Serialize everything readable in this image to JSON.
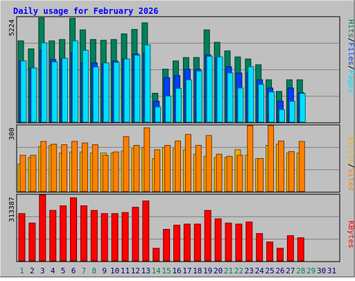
{
  "title": "Daily usage for February 2026",
  "colors": {
    "background": "#c0c0c0",
    "title": "#0000ff",
    "hits": "#00805c",
    "files": "#0040ff",
    "pages": "#00e0ff",
    "visits": "#f0b000",
    "sites": "#ff8000",
    "kbytes": "#ff0000",
    "weekday_label": "#000080",
    "weekend_label": "#00805c"
  },
  "chart_data": [
    {
      "type": "bar",
      "panel": "top",
      "ymax_label": "5224",
      "ylim": [
        0,
        5224
      ],
      "legend": [
        "Pages",
        "Files",
        "Hits"
      ],
      "legend_separator": "/",
      "x": [
        1,
        2,
        3,
        4,
        5,
        6,
        7,
        8,
        9,
        10,
        11,
        12,
        13,
        14,
        15,
        16,
        17,
        18,
        19,
        20,
        21,
        22,
        23,
        24,
        25,
        26,
        27,
        28
      ],
      "series": [
        {
          "name": "Hits",
          "values": [
            4050,
            3650,
            5200,
            4050,
            4120,
            5180,
            4600,
            4120,
            4080,
            4120,
            4400,
            4620,
            4950,
            1440,
            2640,
            3050,
            3220,
            3220,
            4600,
            3980,
            3550,
            3250,
            3150,
            2860,
            2110,
            1530,
            2110,
            2110
          ]
        },
        {
          "name": "Files",
          "values": [
            3050,
            2700,
            3600,
            3120,
            3180,
            3480,
            2960,
            2950,
            2900,
            3050,
            3150,
            3400,
            3450,
            1040,
            2220,
            2320,
            2640,
            2640,
            3350,
            3200,
            2760,
            2450,
            2450,
            2110,
            1700,
            1040,
            1700,
            1470
          ]
        },
        {
          "name": "Pages",
          "values": [
            3050,
            2700,
            3950,
            3000,
            3180,
            4050,
            3580,
            2750,
            2950,
            2980,
            3150,
            3340,
            3850,
            760,
            1300,
            1680,
            2110,
            2550,
            3280,
            3250,
            2450,
            1700,
            2760,
            1880,
            1500,
            620,
            1040,
            1430
          ]
        }
      ]
    },
    {
      "type": "bar",
      "panel": "middle",
      "ymax_label": "300",
      "ylim": [
        0,
        300
      ],
      "legend": [
        "Sites",
        "Visits"
      ],
      "legend_separator": "/",
      "x": [
        1,
        2,
        3,
        4,
        5,
        6,
        7,
        8,
        9,
        10,
        11,
        12,
        13,
        14,
        15,
        16,
        17,
        18,
        19,
        20,
        21,
        22,
        23,
        24,
        25,
        26,
        27,
        28
      ],
      "series": [
        {
          "name": "Visits",
          "values": [
            125,
            155,
            205,
            210,
            175,
            180,
            180,
            175,
            175,
            175,
            185,
            195,
            200,
            150,
            200,
            195,
            190,
            170,
            160,
            155,
            155,
            190,
            165,
            150,
            210,
            215,
            175,
            175
          ]
        },
        {
          "name": "Sites",
          "values": [
            165,
            165,
            228,
            215,
            213,
            228,
            221,
            213,
            165,
            180,
            250,
            210,
            290,
            190,
            210,
            230,
            260,
            210,
            255,
            170,
            160,
            165,
            307,
            150,
            310,
            230,
            182,
            228
          ]
        }
      ]
    },
    {
      "type": "bar",
      "panel": "bottom",
      "ymax_label": "313387",
      "ylim": [
        0,
        313387
      ],
      "legend": [
        "KBytes"
      ],
      "x": [
        1,
        2,
        3,
        4,
        5,
        6,
        7,
        8,
        9,
        10,
        11,
        12,
        13,
        14,
        15,
        16,
        17,
        18,
        19,
        20,
        21,
        22,
        23,
        24,
        25,
        26,
        27,
        28
      ],
      "series": [
        {
          "name": "KBytes",
          "values": [
            225000,
            180000,
            316000,
            240000,
            262000,
            300000,
            262000,
            240000,
            225000,
            225000,
            230000,
            255000,
            285000,
            60000,
            150000,
            170000,
            175000,
            175000,
            240000,
            200000,
            180000,
            175000,
            185000,
            130000,
            90000,
            60000,
            120000,
            110000
          ]
        }
      ]
    }
  ],
  "x_axis": {
    "days": [
      "1",
      "2",
      "3",
      "4",
      "5",
      "6",
      "7",
      "8",
      "9",
      "10",
      "11",
      "12",
      "13",
      "14",
      "15",
      "16",
      "17",
      "18",
      "19",
      "20",
      "21",
      "22",
      "23",
      "24",
      "25",
      "26",
      "27",
      "28",
      "29",
      "30",
      "31"
    ],
    "weekend_days": [
      "1",
      "7",
      "8",
      "14",
      "15",
      "21",
      "22",
      "28",
      "29"
    ]
  }
}
